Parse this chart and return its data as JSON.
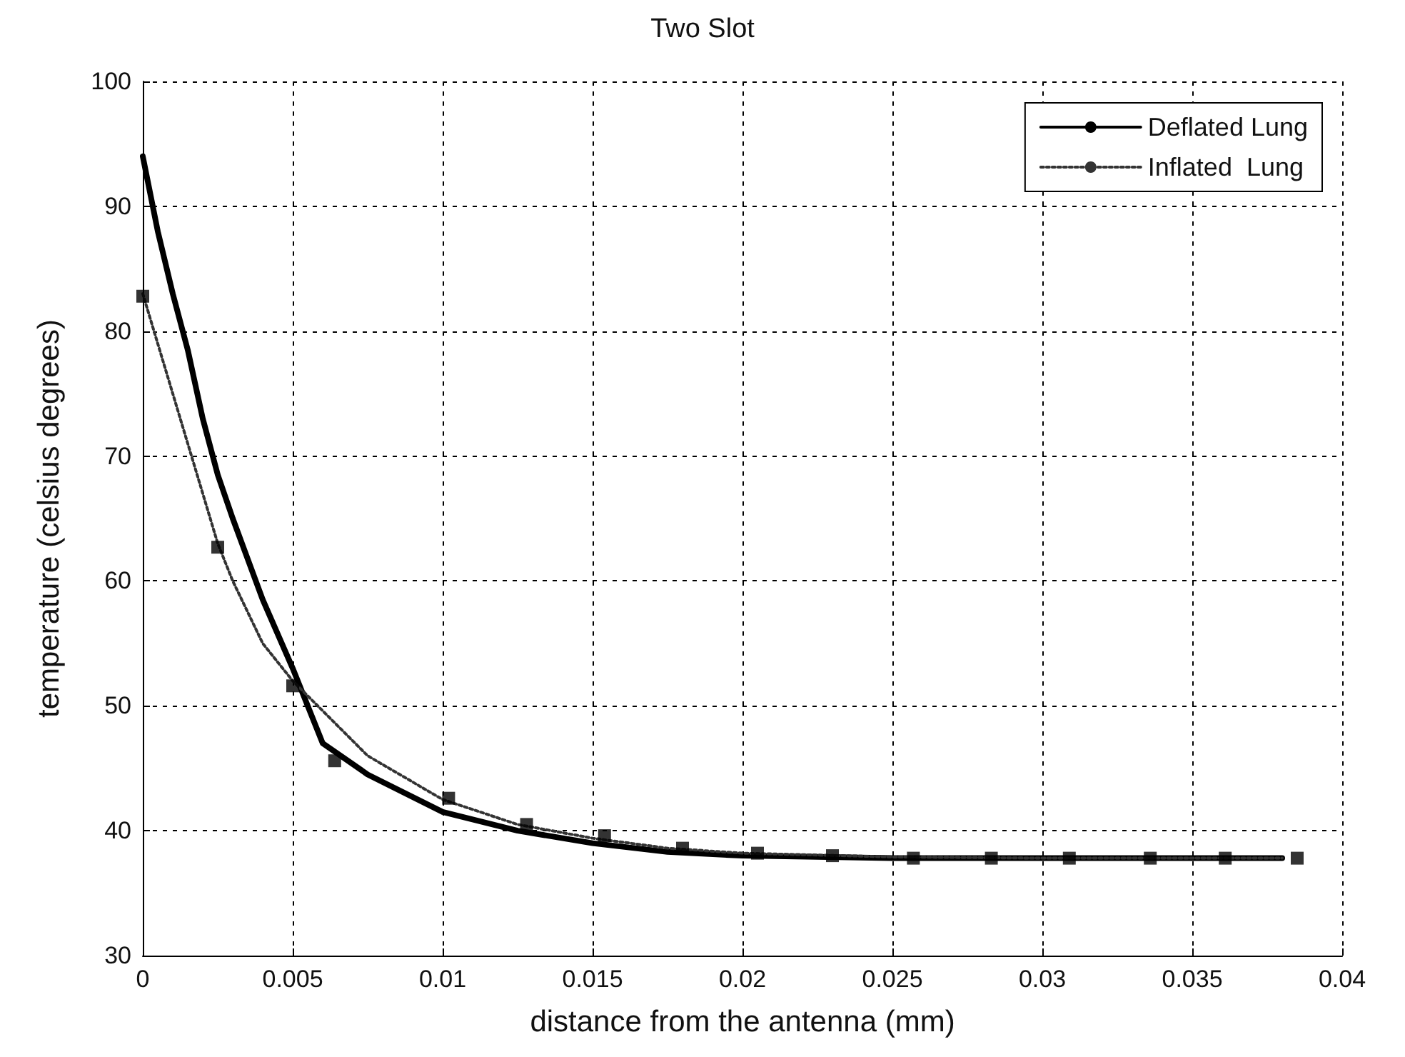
{
  "chart_data": {
    "type": "line",
    "title": "Two Slot",
    "xlabel": "distance from the antenna (mm)",
    "ylabel": "temperature (celsius degrees)",
    "xlim": [
      0,
      0.04
    ],
    "xticks": [
      0,
      0.005,
      0.01,
      0.015,
      0.02,
      0.025,
      0.03,
      0.035,
      0.04
    ],
    "ylim": [
      30,
      100
    ],
    "yticks": [
      30,
      40,
      50,
      60,
      70,
      80,
      90,
      100
    ],
    "grid": true,
    "legend": "top right",
    "series": [
      {
        "name": "Deflated Lung",
        "color": "#000000",
        "line_style": "solid",
        "marker": "none",
        "x": [
          0,
          0.0005,
          0.001,
          0.0015,
          0.002,
          0.0025,
          0.003,
          0.004,
          0.005,
          0.006,
          0.0075,
          0.01,
          0.0125,
          0.015,
          0.0175,
          0.02,
          0.025,
          0.03,
          0.038
        ],
        "values": [
          94,
          88,
          83,
          78.5,
          73,
          68.5,
          65,
          58.5,
          53,
          47,
          44.5,
          41.5,
          40,
          39,
          38.3,
          38,
          37.8,
          37.8,
          37.8
        ]
      },
      {
        "name": "Inflated  Lung",
        "color": "#333333",
        "line_style": "dotted",
        "marker": "none",
        "x": [
          0,
          0.001,
          0.002,
          0.0025,
          0.003,
          0.004,
          0.005,
          0.0075,
          0.01,
          0.0125,
          0.015,
          0.0175,
          0.02,
          0.025,
          0.03,
          0.038
        ],
        "values": [
          83,
          75,
          67,
          63,
          60,
          55,
          52,
          46,
          42.5,
          40.5,
          39.4,
          38.6,
          38.2,
          37.9,
          37.8,
          37.8
        ]
      },
      {
        "type": "scatter",
        "color": "#000000",
        "marker": "square",
        "x": [
          0,
          0.0025,
          0.005,
          0.0064,
          0.0102,
          0.0128,
          0.0154,
          0.018,
          0.0205,
          0.023,
          0.0257,
          0.0283,
          0.0309,
          0.0336,
          0.0361,
          0.0385
        ],
        "values": [
          82.8,
          62.7,
          51.6,
          45.6,
          42.6,
          40.5,
          39.6,
          38.6,
          38.2,
          38,
          37.8,
          37.8,
          37.8,
          37.8,
          37.8,
          37.8
        ]
      }
    ]
  }
}
